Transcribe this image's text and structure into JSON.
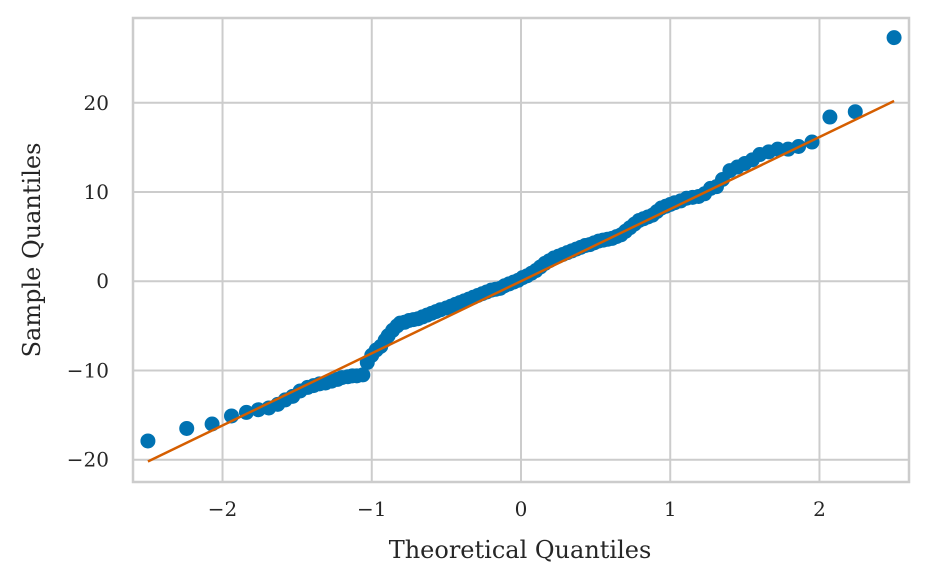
{
  "chart_data": {
    "type": "scatter",
    "title": "",
    "xlabel": "Theoretical Quantiles",
    "ylabel": "Sample Quantiles",
    "xlim": [
      -2.6,
      2.6
    ],
    "ylim": [
      -22.5,
      29.5
    ],
    "xticks": [
      -2,
      -1,
      0,
      1,
      2
    ],
    "xtick_labels": [
      "−2",
      "−1",
      "0",
      "1",
      "2"
    ],
    "yticks": [
      -20,
      -10,
      0,
      10,
      20
    ],
    "ytick_labels": [
      "−20",
      "−10",
      "0",
      "10",
      "20"
    ],
    "grid": true,
    "colors": {
      "points": "#0072b2",
      "line": "#d55e00",
      "grid": "#cccccc",
      "spine": "#cccccc",
      "text": "#262626"
    },
    "series": [
      {
        "type": "scatter",
        "x": [
          -2.5,
          -2.24,
          -2.07,
          -1.94,
          -1.84,
          -1.76,
          -1.69,
          -1.63,
          -1.58,
          -1.53,
          -1.48,
          -1.43,
          -1.39,
          -1.35,
          -1.31,
          -1.27,
          -1.23,
          -1.2,
          -1.16,
          -1.13,
          -1.1,
          -1.06,
          -1.03,
          -1.0,
          -0.97,
          -0.94,
          -0.91,
          -0.89,
          -0.86,
          -0.83,
          -0.81,
          -0.78,
          -0.75,
          -0.72,
          -0.69,
          -0.66,
          -0.63,
          -0.6,
          -0.57,
          -0.54,
          -0.5,
          -0.47,
          -0.44,
          -0.41,
          -0.38,
          -0.35,
          -0.32,
          -0.29,
          -0.26,
          -0.23,
          -0.2,
          -0.17,
          -0.14,
          -0.11,
          -0.08,
          -0.05,
          -0.02,
          0.01,
          0.04,
          0.07,
          0.1,
          0.13,
          0.16,
          0.19,
          0.22,
          0.25,
          0.28,
          0.31,
          0.34,
          0.37,
          0.4,
          0.43,
          0.46,
          0.49,
          0.52,
          0.55,
          0.58,
          0.61,
          0.64,
          0.67,
          0.7,
          0.73,
          0.76,
          0.79,
          0.82,
          0.85,
          0.88,
          0.91,
          0.94,
          0.97,
          1.0,
          1.03,
          1.07,
          1.11,
          1.15,
          1.19,
          1.23,
          1.27,
          1.31,
          1.35,
          1.4,
          1.45,
          1.5,
          1.55,
          1.6,
          1.66,
          1.72,
          1.79,
          1.86,
          1.95,
          2.07,
          2.24,
          2.5
        ],
        "y": [
          -17.9,
          -16.5,
          -16.0,
          -15.1,
          -14.7,
          -14.4,
          -14.2,
          -13.8,
          -13.3,
          -12.9,
          -12.3,
          -11.9,
          -11.7,
          -11.5,
          -11.4,
          -11.2,
          -11.0,
          -10.8,
          -10.7,
          -10.6,
          -10.6,
          -10.5,
          -9.1,
          -8.3,
          -7.7,
          -7.3,
          -6.6,
          -6.1,
          -5.5,
          -5.0,
          -4.7,
          -4.6,
          -4.4,
          -4.3,
          -4.2,
          -4.0,
          -3.8,
          -3.6,
          -3.4,
          -3.2,
          -3.0,
          -2.8,
          -2.6,
          -2.4,
          -2.2,
          -2.0,
          -1.8,
          -1.6,
          -1.4,
          -1.2,
          -1.0,
          -0.9,
          -0.8,
          -0.5,
          -0.3,
          -0.1,
          0.1,
          0.4,
          0.6,
          0.9,
          1.2,
          1.6,
          2.0,
          2.3,
          2.6,
          2.8,
          3.0,
          3.2,
          3.4,
          3.6,
          3.8,
          4.0,
          4.1,
          4.3,
          4.5,
          4.6,
          4.7,
          4.8,
          5.0,
          5.2,
          5.6,
          6.0,
          6.4,
          6.8,
          7.0,
          7.2,
          7.4,
          7.8,
          8.2,
          8.4,
          8.6,
          8.8,
          9.0,
          9.3,
          9.4,
          9.5,
          9.8,
          10.4,
          10.6,
          11.4,
          12.4,
          12.8,
          13.2,
          13.6,
          14.2,
          14.5,
          14.8,
          14.8,
          15.1,
          15.6,
          18.4,
          19.0,
          27.3
        ]
      },
      {
        "type": "line",
        "x": [
          -2.5,
          2.5
        ],
        "y": [
          -20.2,
          20.2
        ]
      }
    ]
  }
}
